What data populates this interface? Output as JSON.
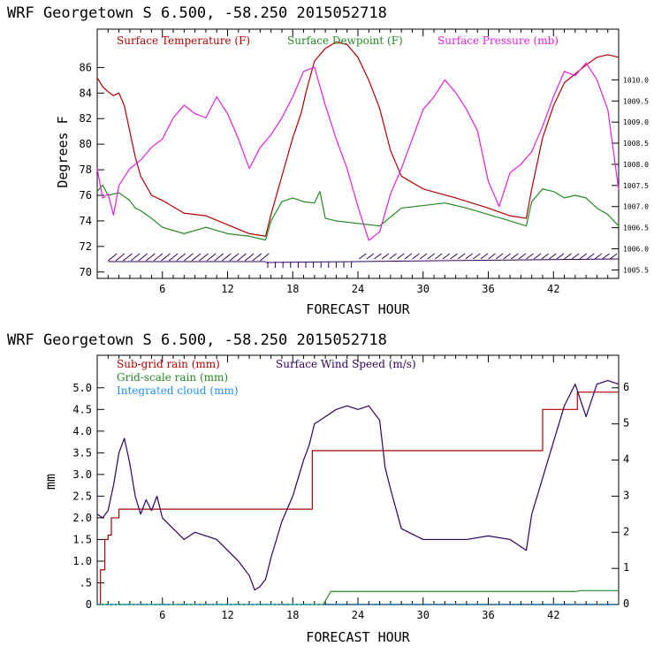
{
  "chart_data": [
    {
      "type": "line",
      "title": "WRF   Georgetown S   6.500, -58.250  2015052718",
      "xlabel": "FORECAST HOUR",
      "ylabel": "Degrees F",
      "xlim": [
        0,
        48
      ],
      "xticks": [
        "6",
        "12",
        "18",
        "24",
        "30",
        "36",
        "42"
      ],
      "ylim": [
        69.5,
        89
      ],
      "yticks": [
        "70",
        "72",
        "74",
        "76",
        "78",
        "80",
        "82",
        "84",
        "86"
      ],
      "y2lim": [
        1005.3,
        1011.2
      ],
      "y2ticks": [
        "1005.5",
        "1006.0",
        "1006.5",
        "1007.0",
        "1007.5",
        "1008.0",
        "1008.5",
        "1009.0",
        "1009.5",
        "1010.0"
      ],
      "legend": [
        {
          "label": "Surface Temperature (F)",
          "color": "#b00000"
        },
        {
          "label": "Surface Dewpoint (F)",
          "color": "#228b22"
        },
        {
          "label": "Surface Pressure (mb)",
          "color": "#e020e0"
        }
      ],
      "series": [
        {
          "name": "Surface Temperature (F)",
          "color": "#b00000",
          "axis": "left",
          "x": [
            0,
            0.5,
            1,
            1.5,
            2,
            2.5,
            3,
            3.5,
            4,
            5,
            6,
            8,
            10,
            12,
            14,
            15.5,
            16,
            17,
            18,
            18.8,
            19.2,
            20,
            21,
            22,
            23,
            24,
            25,
            26,
            27,
            28,
            30,
            33,
            36,
            38,
            39.5,
            40,
            41,
            42,
            43,
            44,
            45,
            46,
            47,
            48
          ],
          "y": [
            85.2,
            84.5,
            84.1,
            83.8,
            84.0,
            83.0,
            81.0,
            79.0,
            77.5,
            76.0,
            75.6,
            74.6,
            74.4,
            73.7,
            73.0,
            72.8,
            74.5,
            77.5,
            80.5,
            82.5,
            84.0,
            86.5,
            87.5,
            88.0,
            87.8,
            86.8,
            85.0,
            82.8,
            79.5,
            77.5,
            76.5,
            75.8,
            75.0,
            74.4,
            74.2,
            76.5,
            80.5,
            83.0,
            84.8,
            85.5,
            86.2,
            86.8,
            87.0,
            86.8
          ]
        },
        {
          "name": "Surface Dewpoint (F)",
          "color": "#228b22",
          "axis": "left",
          "x": [
            0,
            0.5,
            1,
            2,
            3,
            3.5,
            4,
            5,
            6,
            8,
            10,
            12,
            14,
            15.5,
            16,
            17,
            18,
            19,
            20,
            20.5,
            21,
            22,
            24,
            26,
            28,
            30,
            32,
            34,
            36,
            38,
            39.5,
            40,
            41,
            42,
            43,
            44,
            45,
            46,
            47,
            48
          ],
          "y": [
            76.3,
            76.8,
            76.0,
            76.2,
            75.6,
            75.0,
            74.8,
            74.2,
            73.5,
            73.0,
            73.5,
            73.0,
            72.8,
            72.5,
            74.0,
            75.5,
            75.8,
            75.5,
            75.4,
            76.3,
            74.2,
            74.0,
            73.8,
            73.6,
            75.0,
            75.2,
            75.4,
            75.0,
            74.5,
            74.0,
            73.6,
            75.5,
            76.5,
            76.3,
            75.8,
            76.0,
            75.8,
            75.0,
            74.5,
            73.6
          ]
        },
        {
          "name": "Surface Pressure (mb)",
          "color": "#e020e0",
          "axis": "right",
          "x": [
            0,
            0.5,
            1,
            1.5,
            2,
            3,
            4,
            5,
            6,
            7,
            8,
            9,
            10,
            11,
            12,
            13,
            14,
            15,
            16,
            17,
            18,
            19,
            20,
            21,
            22,
            23,
            24,
            25,
            26,
            27,
            28,
            29,
            30,
            31,
            32,
            33,
            34,
            35,
            36,
            37,
            38,
            39,
            40,
            41,
            42,
            43,
            44,
            45,
            46,
            47,
            48
          ],
          "y": [
            1007.9,
            1007.2,
            1007.3,
            1006.8,
            1007.5,
            1007.9,
            1008.1,
            1008.4,
            1008.6,
            1009.1,
            1009.4,
            1009.2,
            1009.1,
            1009.6,
            1009.2,
            1008.6,
            1007.9,
            1008.4,
            1008.7,
            1009.1,
            1009.6,
            1010.2,
            1010.3,
            1009.4,
            1008.6,
            1007.9,
            1007.0,
            1006.2,
            1006.4,
            1007.3,
            1007.9,
            1008.6,
            1009.3,
            1009.6,
            1010.0,
            1009.7,
            1009.3,
            1008.8,
            1007.6,
            1007.0,
            1007.8,
            1008.0,
            1008.3,
            1008.9,
            1009.6,
            1010.2,
            1010.1,
            1010.4,
            1010.0,
            1009.3,
            1007.4
          ]
        }
      ]
    },
    {
      "type": "line",
      "title": "WRF   Georgetown S   6.500, -58.250  2015052718",
      "xlabel": "FORECAST HOUR",
      "ylabel": "mm",
      "xlim": [
        0,
        48
      ],
      "xticks": [
        "6",
        "12",
        "18",
        "24",
        "30",
        "36",
        "42"
      ],
      "ylim": [
        0,
        5.75
      ],
      "yticks": [
        "0",
        ".5",
        "1.0",
        "1.5",
        "2.0",
        "2.5",
        "3.0",
        "3.5",
        "4.0",
        "4.5",
        "5.0"
      ],
      "y2lim": [
        0,
        6.9
      ],
      "y2ticks": [
        "0",
        "1",
        "2",
        "3",
        "4",
        "5",
        "6"
      ],
      "legend": [
        {
          "label": "Sub-grid rain (mm)",
          "color": "#b00000"
        },
        {
          "label": "Surface Wind Speed (m/s)",
          "color": "#300060"
        },
        {
          "label": "Grid-scale rain (mm)",
          "color": "#228b22"
        },
        {
          "label": "Integrated cloud (mm)",
          "color": "#1e90ff"
        }
      ],
      "series": [
        {
          "name": "Sub-grid rain (mm)",
          "color": "#b00000",
          "axis": "left",
          "step": true,
          "x": [
            0,
            0.3,
            0.7,
            1,
            1.3,
            2,
            19.2,
            19.8,
            40.5,
            41,
            43.6,
            44.2,
            48
          ],
          "y": [
            0,
            0.8,
            1.5,
            1.6,
            2.0,
            2.2,
            2.2,
            3.55,
            3.55,
            4.5,
            4.5,
            4.9,
            4.9
          ]
        },
        {
          "name": "Surface Wind Speed (m/s)",
          "color": "#300060",
          "axis": "right",
          "x": [
            0,
            0.5,
            1,
            1.5,
            2,
            2.5,
            3,
            3.5,
            4,
            4.5,
            5,
            5.5,
            6,
            7,
            8,
            9,
            10,
            11,
            12,
            13,
            14,
            14.5,
            15,
            15.5,
            16,
            17,
            18,
            19,
            19.5,
            20,
            21,
            22,
            23,
            24,
            25,
            26,
            26.5,
            27,
            28,
            30,
            32,
            34,
            36,
            38,
            39.5,
            40,
            41,
            42,
            43,
            44,
            45,
            46,
            47,
            48
          ],
          "y": [
            2.5,
            2.4,
            2.6,
            3.3,
            4.2,
            4.6,
            3.9,
            3.0,
            2.5,
            2.9,
            2.6,
            3.0,
            2.4,
            2.1,
            1.8,
            2.0,
            1.9,
            1.8,
            1.5,
            1.2,
            0.8,
            0.4,
            0.5,
            0.7,
            1.3,
            2.3,
            3.0,
            4.0,
            4.4,
            5.0,
            5.2,
            5.4,
            5.5,
            5.4,
            5.5,
            5.1,
            3.8,
            3.2,
            2.1,
            1.8,
            1.8,
            1.8,
            1.9,
            1.8,
            1.5,
            2.5,
            3.5,
            4.5,
            5.5,
            6.1,
            5.2,
            6.1,
            6.2,
            6.1
          ]
        },
        {
          "name": "Grid-scale rain (mm)",
          "color": "#228b22",
          "axis": "left",
          "x": [
            0,
            20.8,
            21.5,
            44,
            44.5,
            48
          ],
          "y": [
            0,
            0,
            0.3,
            0.3,
            0.32,
            0.32
          ]
        },
        {
          "name": "Integrated cloud (mm)",
          "color": "#1e90ff",
          "axis": "left",
          "dotted": true,
          "x": [
            0,
            48
          ],
          "y": [
            0,
            0
          ]
        }
      ]
    }
  ]
}
